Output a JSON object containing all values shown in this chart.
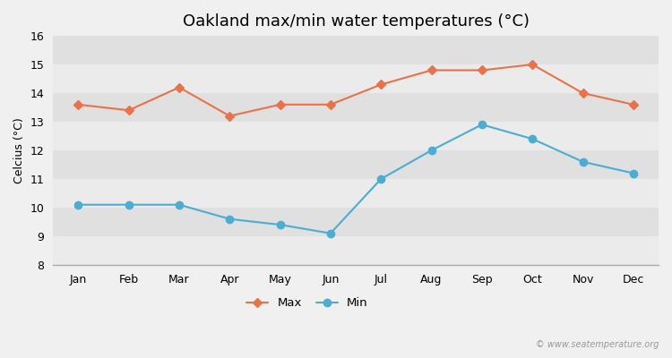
{
  "title": "Oakland max/min water temperatures (°C)",
  "ylabel": "Celcius (°C)",
  "months": [
    "Jan",
    "Feb",
    "Mar",
    "Apr",
    "May",
    "Jun",
    "Jul",
    "Aug",
    "Sep",
    "Oct",
    "Nov",
    "Dec"
  ],
  "max_temps": [
    13.6,
    13.4,
    14.2,
    13.2,
    13.6,
    13.6,
    14.3,
    14.8,
    14.8,
    15.0,
    14.0,
    13.6
  ],
  "min_temps": [
    10.1,
    10.1,
    10.1,
    9.6,
    9.4,
    9.1,
    11.0,
    12.0,
    12.9,
    12.4,
    11.6,
    11.2
  ],
  "max_color": "#E8724A",
  "min_color": "#4BADD4",
  "bg_color": "#f0f0f0",
  "band_color_light": "#ebebeb",
  "band_color_dark": "#e0e0e0",
  "ylim": [
    8,
    16
  ],
  "yticks": [
    8,
    9,
    10,
    11,
    12,
    13,
    14,
    15,
    16
  ],
  "watermark": "© www.seatemperature.org",
  "legend_labels": [
    "Max",
    "Min"
  ],
  "title_fontsize": 13,
  "label_fontsize": 9,
  "tick_fontsize": 9
}
